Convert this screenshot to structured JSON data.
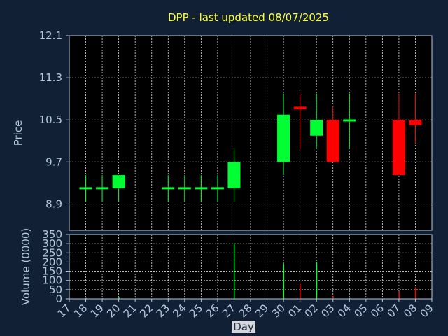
{
  "chart_data": {
    "type": "candlestick",
    "title": "DPP - last updated 08/07/2025",
    "xlabel": "Day",
    "price_panel": {
      "ylabel": "Price",
      "ylim": [
        8.4,
        12.1
      ],
      "yticks": [
        8.9,
        9.7,
        10.5,
        11.3,
        12.1
      ],
      "ytick_labels": [
        "8.9",
        "9.7",
        "10.5",
        "11.3",
        "12.1"
      ],
      "grid": true
    },
    "volume_panel": {
      "ylabel": "Volume (0000)",
      "ylim": [
        0,
        350
      ],
      "yticks": [
        0,
        50,
        100,
        150,
        200,
        250,
        300,
        350
      ],
      "ytick_labels": [
        "0",
        "50",
        "100",
        "150",
        "200",
        "250",
        "300",
        "350"
      ],
      "grid": true
    },
    "x_ticks": [
      "17",
      "18",
      "19",
      "20",
      "21",
      "22",
      "23",
      "24",
      "25",
      "26",
      "27",
      "28",
      "29",
      "30",
      "01",
      "02",
      "03",
      "04",
      "05",
      "06",
      "07",
      "08",
      "09"
    ],
    "candles": [
      {
        "x": "18",
        "open": 9.2,
        "high": 9.45,
        "low": 8.95,
        "close": 9.2,
        "volume": 5
      },
      {
        "x": "19",
        "open": 9.2,
        "high": 9.45,
        "low": 8.95,
        "close": 9.2,
        "volume": 3
      },
      {
        "x": "20",
        "open": 9.2,
        "high": 9.45,
        "low": 8.95,
        "close": 9.45,
        "volume": 10
      },
      {
        "x": "23",
        "open": 9.2,
        "high": 9.45,
        "low": 8.95,
        "close": 9.2,
        "volume": 4
      },
      {
        "x": "24",
        "open": 9.2,
        "high": 9.45,
        "low": 8.95,
        "close": 9.2,
        "volume": 4
      },
      {
        "x": "25",
        "open": 9.2,
        "high": 9.45,
        "low": 8.95,
        "close": 9.2,
        "volume": 3
      },
      {
        "x": "26",
        "open": 9.2,
        "high": 9.45,
        "low": 8.95,
        "close": 9.2,
        "volume": 3
      },
      {
        "x": "27",
        "open": 9.2,
        "high": 9.95,
        "low": 8.95,
        "close": 9.7,
        "volume": 300
      },
      {
        "x": "30",
        "open": 9.7,
        "high": 11.0,
        "low": 9.45,
        "close": 10.6,
        "volume": 190
      },
      {
        "x": "01",
        "open": 10.75,
        "high": 11.0,
        "low": 9.95,
        "close": 10.7,
        "volume": 80
      },
      {
        "x": "02",
        "open": 10.2,
        "high": 11.0,
        "low": 9.95,
        "close": 10.5,
        "volume": 200
      },
      {
        "x": "03",
        "open": 10.5,
        "high": 10.75,
        "low": 9.7,
        "close": 9.7,
        "volume": 15
      },
      {
        "x": "04",
        "open": 10.48,
        "high": 11.0,
        "low": 9.95,
        "close": 10.5,
        "volume": 5
      },
      {
        "x": "07",
        "open": 10.5,
        "high": 11.0,
        "low": 9.45,
        "close": 9.45,
        "volume": 40
      },
      {
        "x": "08",
        "open": 10.5,
        "high": 11.0,
        "low": 10.05,
        "close": 10.4,
        "volume": 65
      }
    ],
    "colors": {
      "background": "#112034",
      "plot_background": "#000000",
      "grid": "#d8d8d8",
      "frame": "#b8c8dc",
      "up": "#00ff33",
      "down": "#ff0000",
      "title": "#ffff33",
      "text": "#b8c8dc"
    }
  }
}
